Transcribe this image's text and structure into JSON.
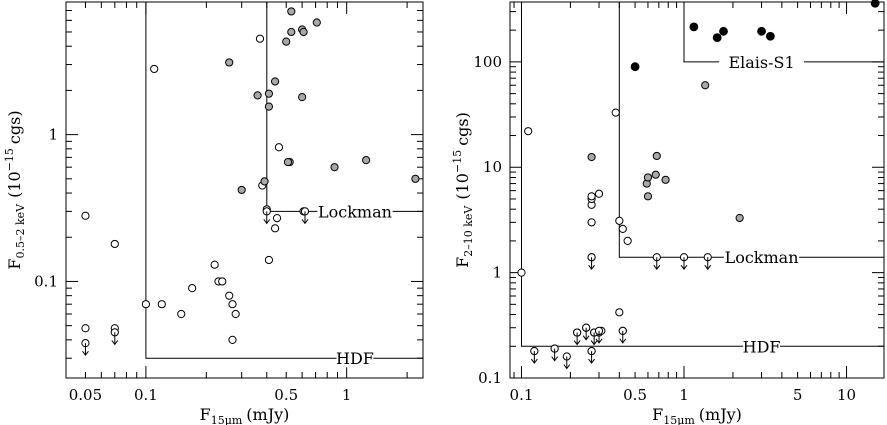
{
  "chart_data": [
    {
      "type": "scatter",
      "xscale": "log",
      "yscale": "log",
      "xlim": [
        0.04,
        2.4
      ],
      "ylim": [
        0.022,
        8.0
      ],
      "xlabel": "F",
      "xlabel_sub": "15μm",
      "xlabel_unit": "(mJy)",
      "ylabel": "F",
      "ylabel_sub": "0.5–2 keV",
      "ylabel_unit": "(10",
      "ylabel_exp": "−15",
      "ylabel_tail": "cgs)",
      "xticks": [
        {
          "v": 0.05,
          "label": "0.05"
        },
        {
          "v": 0.1,
          "label": "0.1"
        },
        {
          "v": 0.5,
          "label": "0.5"
        },
        {
          "v": 1,
          "label": "1"
        }
      ],
      "yticks": [
        {
          "v": 0.1,
          "label": "0.1"
        },
        {
          "v": 1,
          "label": "1"
        }
      ],
      "region_lines": [
        {
          "points": [
            [
              0.1,
              8.0
            ],
            [
              0.1,
              0.03
            ],
            [
              2.4,
              0.03
            ]
          ],
          "label": "HDF",
          "label_at": [
            1.1,
            0.03
          ]
        },
        {
          "points": [
            [
              0.4,
              8.0
            ],
            [
              0.4,
              0.3
            ],
            [
              2.4,
              0.3
            ]
          ],
          "label": "Lockman",
          "label_at": [
            1.1,
            0.3
          ]
        }
      ],
      "series": [
        {
          "style": "open",
          "points": [
            [
              0.05,
              0.28
            ],
            [
              0.07,
              0.18
            ],
            [
              0.05,
              0.048
            ],
            [
              0.07,
              0.048
            ],
            [
              0.1,
              0.07
            ],
            [
              0.11,
              2.8
            ],
            [
              0.12,
              0.07
            ],
            [
              0.15,
              0.06
            ],
            [
              0.17,
              0.09
            ],
            [
              0.22,
              0.13
            ],
            [
              0.23,
              0.1
            ],
            [
              0.24,
              0.1
            ],
            [
              0.26,
              0.08
            ],
            [
              0.27,
              0.07
            ],
            [
              0.28,
              0.06
            ],
            [
              0.27,
              0.04
            ],
            [
              0.37,
              4.5
            ],
            [
              0.38,
              0.45
            ],
            [
              0.41,
              0.14
            ],
            [
              0.45,
              0.27
            ],
            [
              0.44,
              0.23
            ],
            [
              0.46,
              0.82
            ],
            [
              0.61,
              0.3
            ],
            [
              0.4,
              0.31
            ]
          ]
        },
        {
          "style": "filled",
          "points": [
            [
              0.26,
              3.1
            ],
            [
              0.36,
              1.85
            ],
            [
              0.41,
              1.9
            ],
            [
              0.41,
              1.55
            ],
            [
              0.44,
              2.3
            ],
            [
              0.53,
              6.9
            ],
            [
              0.6,
              5.2
            ],
            [
              0.5,
              4.3
            ],
            [
              0.53,
              5.0
            ],
            [
              0.61,
              5.0
            ],
            [
              0.71,
              5.8
            ],
            [
              0.6,
              1.8
            ],
            [
              0.52,
              0.65
            ],
            [
              0.51,
              0.65
            ],
            [
              0.3,
              0.42
            ],
            [
              0.39,
              0.48
            ],
            [
              0.87,
              0.6
            ],
            [
              1.25,
              0.67
            ],
            [
              2.2,
              0.5
            ]
          ]
        },
        {
          "style": "limit",
          "points": [
            [
              0.05,
              0.038
            ],
            [
              0.07,
              0.045
            ],
            [
              0.4,
              0.3
            ],
            [
              0.62,
              0.3
            ]
          ]
        }
      ]
    },
    {
      "type": "scatter",
      "xscale": "log",
      "yscale": "log",
      "xlim": [
        0.085,
        17.0
      ],
      "ylim": [
        0.1,
        370
      ],
      "xlabel": "F",
      "xlabel_sub": "15μm",
      "xlabel_unit": "(mJy)",
      "ylabel": "F",
      "ylabel_sub": "2–10 keV",
      "ylabel_unit": "(10",
      "ylabel_exp": "−15",
      "ylabel_tail": "cgs)",
      "xticks": [
        {
          "v": 0.1,
          "label": "0.1"
        },
        {
          "v": 0.5,
          "label": "0.5"
        },
        {
          "v": 1,
          "label": "1"
        },
        {
          "v": 5,
          "label": "5"
        },
        {
          "v": 10,
          "label": "10"
        }
      ],
      "yticks": [
        {
          "v": 0.1,
          "label": "0.1"
        },
        {
          "v": 1,
          "label": "1"
        },
        {
          "v": 10,
          "label": "10"
        },
        {
          "v": 100,
          "label": "100"
        }
      ],
      "region_lines": [
        {
          "points": [
            [
              0.1,
              370
            ],
            [
              0.1,
              0.2
            ],
            [
              17.0,
              0.2
            ]
          ],
          "label": "HDF",
          "label_at": [
            3.0,
            0.2
          ]
        },
        {
          "points": [
            [
              0.4,
              370
            ],
            [
              0.4,
              1.4
            ],
            [
              17.0,
              1.4
            ]
          ],
          "label": "Lockman",
          "label_at": [
            3.0,
            1.4
          ]
        },
        {
          "points": [
            [
              1.0,
              370
            ],
            [
              1.0,
              100
            ],
            [
              17.0,
              100
            ]
          ],
          "label": "Elais-S1",
          "label_at": [
            3.0,
            100
          ]
        }
      ],
      "series": [
        {
          "style": "open",
          "points": [
            [
              0.1,
              1.0
            ],
            [
              0.11,
              22
            ],
            [
              0.12,
              0.18
            ],
            [
              0.16,
              0.19
            ],
            [
              0.22,
              0.27
            ],
            [
              0.25,
              0.3
            ],
            [
              0.28,
              0.27
            ],
            [
              0.3,
              0.27
            ],
            [
              0.31,
              0.28
            ],
            [
              0.27,
              4.4
            ],
            [
              0.27,
              5.0
            ],
            [
              0.27,
              5.3
            ],
            [
              0.27,
              3.0
            ],
            [
              0.27,
              1.4
            ],
            [
              0.3,
              5.6
            ],
            [
              0.38,
              33
            ],
            [
              0.4,
              3.1
            ],
            [
              0.42,
              2.6
            ],
            [
              0.45,
              2.0
            ],
            [
              0.4,
              0.42
            ],
            [
              0.42,
              0.28
            ],
            [
              0.27,
              0.18
            ]
          ]
        },
        {
          "style": "filled",
          "points": [
            [
              0.27,
              12.5
            ],
            [
              0.59,
              7.0
            ],
            [
              0.6,
              8.0
            ],
            [
              0.6,
              5.3
            ],
            [
              0.68,
              12.8
            ],
            [
              0.67,
              8.5
            ],
            [
              0.77,
              7.6
            ],
            [
              1.35,
              60
            ],
            [
              2.2,
              3.3
            ]
          ]
        },
        {
          "style": "black",
          "points": [
            [
              0.5,
              90
            ],
            [
              1.15,
              215
            ],
            [
              1.6,
              170
            ],
            [
              1.75,
              195
            ],
            [
              3.0,
              195
            ],
            [
              3.4,
              175
            ],
            [
              15.0,
              360
            ]
          ]
        },
        {
          "style": "limit",
          "points": [
            [
              0.12,
              0.18
            ],
            [
              0.16,
              0.19
            ],
            [
              0.19,
              0.16
            ],
            [
              0.22,
              0.27
            ],
            [
              0.25,
              0.3
            ],
            [
              0.27,
              0.18
            ],
            [
              0.28,
              0.27
            ],
            [
              0.3,
              0.28
            ],
            [
              0.42,
              0.28
            ],
            [
              0.27,
              1.4
            ],
            [
              0.68,
              1.4
            ],
            [
              1.0,
              1.4
            ],
            [
              1.4,
              1.4
            ]
          ]
        }
      ]
    }
  ]
}
